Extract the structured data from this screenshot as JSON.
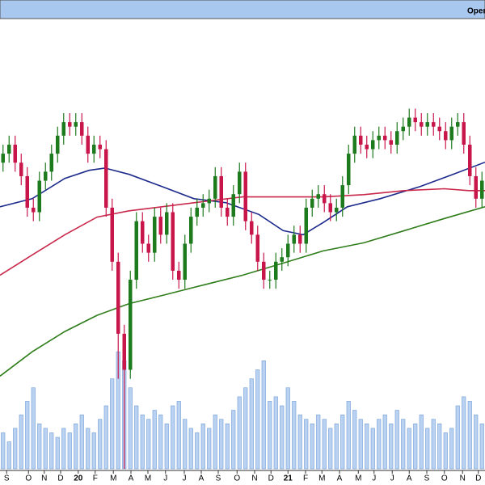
{
  "header": {
    "label": "Open"
  },
  "chart_data": {
    "type": "candlestick",
    "up_color": "#1d7a1d",
    "down_color": "#c8164a",
    "volume_color": "#b9d2f2",
    "volume_edge": "#6f9bd6",
    "xlim": [
      -0.5,
      79.5
    ],
    "ylim": [
      0,
      100
    ],
    "y2lim": [
      0,
      100
    ],
    "xticks": [
      {
        "value": 0.6,
        "label": "S"
      },
      {
        "value": 4.2,
        "label": "O"
      },
      {
        "value": 6.8,
        "label": "N"
      },
      {
        "value": 9.5,
        "label": "D"
      },
      {
        "value": 12.4,
        "label": "20"
      },
      {
        "value": 15.2,
        "label": "F"
      },
      {
        "value": 18.2,
        "label": "M"
      },
      {
        "value": 21.1,
        "label": "A"
      },
      {
        "value": 23.9,
        "label": "M"
      },
      {
        "value": 26.8,
        "label": "J"
      },
      {
        "value": 29.9,
        "label": "J"
      },
      {
        "value": 32.7,
        "label": "A"
      },
      {
        "value": 35.5,
        "label": "S"
      },
      {
        "value": 38.6,
        "label": "O"
      },
      {
        "value": 41.5,
        "label": "N"
      },
      {
        "value": 44.2,
        "label": "D"
      },
      {
        "value": 47,
        "label": "21"
      },
      {
        "value": 49.9,
        "label": "F"
      },
      {
        "value": 52.6,
        "label": "M"
      },
      {
        "value": 55.5,
        "label": "A"
      },
      {
        "value": 58.6,
        "label": "M"
      },
      {
        "value": 61.2,
        "label": "J"
      },
      {
        "value": 64.2,
        "label": "J"
      },
      {
        "value": 67,
        "label": "A"
      },
      {
        "value": 69.9,
        "label": "S"
      },
      {
        "value": 72.8,
        "label": "O"
      },
      {
        "value": 75.8,
        "label": "N"
      },
      {
        "value": 78.4,
        "label": "D"
      }
    ],
    "open": [
      68,
      70,
      72,
      68,
      65,
      58,
      57,
      64,
      66,
      70,
      74,
      77,
      76,
      77,
      74,
      70,
      72,
      71,
      58,
      46,
      30,
      22,
      42,
      55,
      50,
      48,
      56,
      52,
      57,
      44,
      42,
      50,
      56,
      58,
      59,
      60,
      65,
      58,
      56,
      61,
      66,
      55,
      52,
      46,
      42,
      42,
      46,
      47,
      50,
      52,
      50,
      58,
      60,
      61,
      59,
      57,
      58,
      63,
      70,
      74,
      72,
      71,
      73,
      74,
      73,
      72,
      75,
      76,
      78,
      77,
      76,
      77,
      76,
      75,
      73,
      76,
      77,
      72,
      65,
      60
    ],
    "high": [
      72,
      74,
      74,
      70,
      67,
      60,
      66,
      68,
      72,
      76,
      79,
      79,
      79,
      79,
      76,
      74,
      74,
      73,
      60,
      48,
      32,
      44,
      57,
      57,
      52,
      58,
      58,
      59,
      59,
      46,
      52,
      58,
      60,
      61,
      62,
      67,
      67,
      60,
      63,
      68,
      68,
      57,
      54,
      48,
      44,
      48,
      49,
      52,
      54,
      54,
      60,
      62,
      63,
      63,
      61,
      60,
      65,
      72,
      76,
      76,
      74,
      75,
      76,
      76,
      75,
      77,
      78,
      80,
      80,
      79,
      79,
      79,
      78,
      77,
      78,
      79,
      79,
      74,
      67,
      66
    ],
    "low": [
      66,
      68,
      66,
      63,
      56,
      55,
      55,
      62,
      64,
      68,
      72,
      74,
      74,
      72,
      68,
      68,
      69,
      56,
      44,
      20,
      0,
      20,
      40,
      48,
      46,
      46,
      50,
      50,
      42,
      40,
      40,
      48,
      54,
      56,
      57,
      58,
      56,
      54,
      54,
      59,
      53,
      50,
      44,
      40,
      40,
      40,
      44,
      45,
      48,
      48,
      48,
      56,
      58,
      57,
      55,
      55,
      56,
      61,
      68,
      70,
      69,
      69,
      71,
      71,
      70,
      70,
      73,
      74,
      75,
      74,
      74,
      74,
      73,
      71,
      71,
      74,
      70,
      63,
      58,
      58
    ],
    "close": [
      70,
      72,
      68,
      65,
      58,
      57,
      64,
      66,
      70,
      74,
      77,
      76,
      77,
      74,
      70,
      72,
      71,
      58,
      46,
      30,
      22,
      42,
      55,
      50,
      48,
      56,
      52,
      57,
      44,
      42,
      50,
      56,
      58,
      59,
      60,
      65,
      58,
      56,
      61,
      66,
      55,
      52,
      46,
      42,
      42,
      46,
      47,
      50,
      52,
      50,
      58,
      60,
      61,
      59,
      57,
      58,
      63,
      70,
      74,
      72,
      71,
      73,
      74,
      73,
      72,
      75,
      76,
      78,
      77,
      76,
      77,
      76,
      75,
      73,
      76,
      77,
      72,
      65,
      60,
      64
    ],
    "volume": [
      8,
      6,
      9,
      12,
      15,
      18,
      10,
      9,
      8,
      7,
      9,
      8,
      10,
      12,
      9,
      8,
      11,
      14,
      20,
      26,
      24,
      18,
      14,
      12,
      11,
      13,
      12,
      10,
      14,
      15,
      11,
      9,
      8,
      10,
      9,
      12,
      11,
      10,
      13,
      16,
      18,
      20,
      22,
      24,
      15,
      16,
      14,
      18,
      15,
      12,
      11,
      10,
      12,
      11,
      9,
      10,
      12,
      15,
      13,
      11,
      10,
      9,
      11,
      12,
      10,
      13,
      11,
      9,
      10,
      12,
      9,
      11,
      10,
      8,
      9,
      14,
      16,
      15,
      12,
      10
    ],
    "moving_averages": [
      {
        "color": "#1c2a8c",
        "x": [
          -0.5,
          4.8,
          10.2,
          14.2,
          16.8,
          20.8,
          26.2,
          31.5,
          36.8,
          42.2,
          46.2,
          49.5,
          52.8,
          56.8,
          62.2,
          68.8,
          74.2,
          79.5
        ],
        "values": [
          58.2,
          60,
          64.5,
          66.3,
          66.8,
          65.4,
          62.7,
          60,
          59.1,
          56.5,
          52.9,
          52,
          54.7,
          58.2,
          60,
          62.7,
          65.4,
          68.1
        ]
      },
      {
        "color": "#c8284a",
        "x": [
          -0.5,
          4.8,
          10.2,
          15.5,
          20.8,
          26.2,
          31.5,
          39.5,
          46.2,
          52.8,
          59.5,
          66.2,
          72.8,
          76.8,
          79.5
        ],
        "values": [
          43,
          47.5,
          52,
          55.9,
          57.3,
          58.2,
          59.1,
          60.4,
          60.4,
          60.4,
          60.9,
          61.8,
          62.2,
          61.8,
          61.8
        ]
      },
      {
        "color": "#2e7d1a",
        "x": [
          -0.5,
          4.8,
          10.2,
          15.5,
          20.8,
          26.2,
          31.5,
          39.5,
          46.2,
          52.8,
          59.5,
          66.2,
          72.8,
          79.5
        ],
        "values": [
          20.6,
          26,
          30.5,
          34.1,
          36.7,
          38.5,
          40.3,
          43,
          45.7,
          48.4,
          50.2,
          52.9,
          55.6,
          58.2
        ]
      }
    ]
  }
}
